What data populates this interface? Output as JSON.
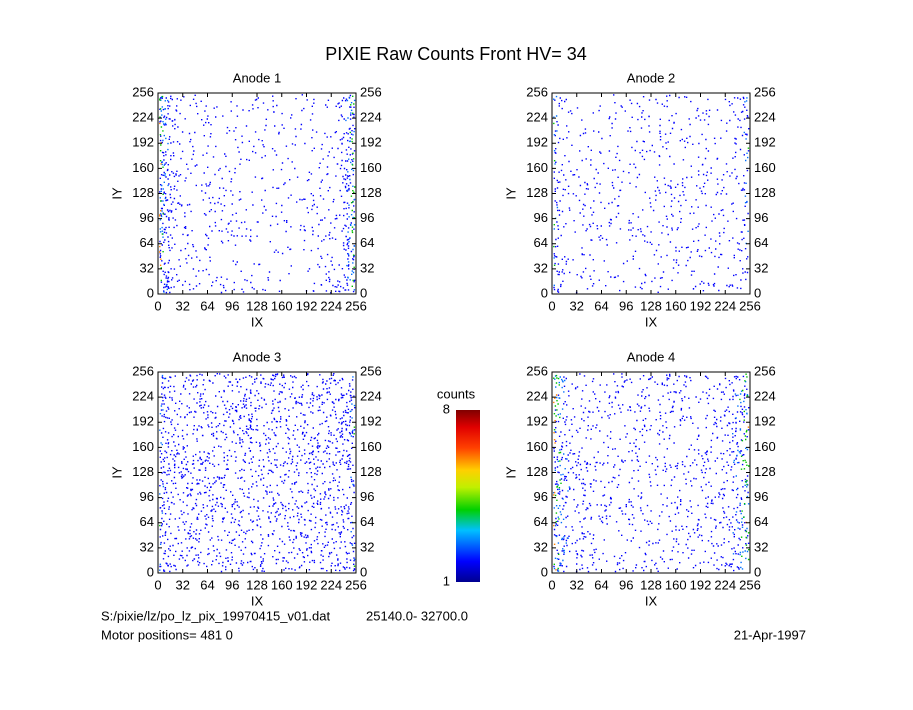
{
  "title": "PIXIE Raw Counts Front HV= 34",
  "chart_data": [
    {
      "type": "heatmap",
      "title": "Anode 1",
      "xlabel": "IX",
      "ylabel": "IY",
      "xlim": [
        0,
        256
      ],
      "ylim": [
        0,
        256
      ],
      "xticks": [
        0,
        32,
        64,
        96,
        128,
        160,
        192,
        224,
        256
      ],
      "yticks": [
        0,
        32,
        64,
        96,
        128,
        160,
        192,
        224,
        256
      ]
    },
    {
      "type": "heatmap",
      "title": "Anode 2",
      "xlabel": "IX",
      "ylabel": "IY",
      "xlim": [
        0,
        256
      ],
      "ylim": [
        0,
        256
      ],
      "xticks": [
        0,
        32,
        64,
        96,
        128,
        160,
        192,
        224,
        256
      ],
      "yticks": [
        0,
        32,
        64,
        96,
        128,
        160,
        192,
        224,
        256
      ]
    },
    {
      "type": "heatmap",
      "title": "Anode 3",
      "xlabel": "IX",
      "ylabel": "IY",
      "xlim": [
        0,
        256
      ],
      "ylim": [
        0,
        256
      ],
      "xticks": [
        0,
        32,
        64,
        96,
        128,
        160,
        192,
        224,
        256
      ],
      "yticks": [
        0,
        32,
        64,
        96,
        128,
        160,
        192,
        224,
        256
      ]
    },
    {
      "type": "heatmap",
      "title": "Anode 4",
      "xlabel": "IX",
      "ylabel": "IY",
      "xlim": [
        0,
        256
      ],
      "ylim": [
        0,
        256
      ],
      "xticks": [
        0,
        32,
        64,
        96,
        128,
        160,
        192,
        224,
        256
      ],
      "yticks": [
        0,
        32,
        64,
        96,
        128,
        160,
        192,
        224,
        256
      ]
    }
  ],
  "colorbar": {
    "label": "counts",
    "lim": [
      1,
      8
    ],
    "ticks": [
      1,
      8
    ]
  },
  "footer": {
    "file": "S:/pixie/lz/po_lz_pix_19970415_v01.dat",
    "range": "25140.0- 32700.0",
    "motor": "Motor positions= 481 0",
    "date": "21-Apr-1997"
  }
}
